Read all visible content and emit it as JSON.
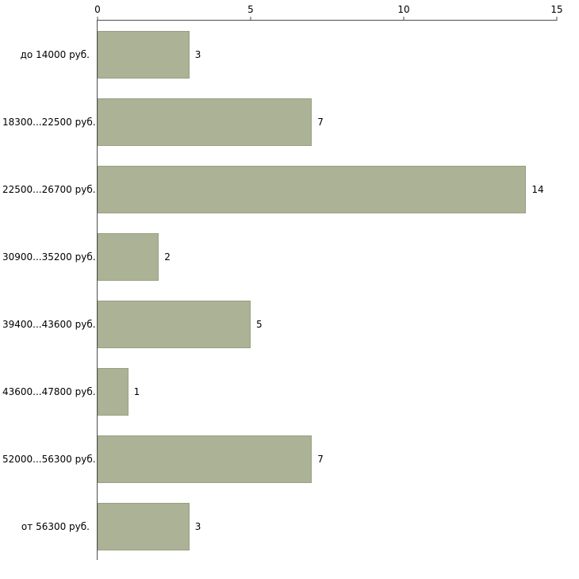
{
  "chart_data": {
    "type": "bar",
    "orientation": "horizontal",
    "title": "",
    "xlabel": "",
    "ylabel": "",
    "categories": [
      "до 14000 руб.",
      "18300...22500 руб.",
      "22500...26700 руб.",
      "30900...35200 руб.",
      "39400...43600 руб.",
      "43600...47800 руб.",
      "52000...56300 руб.",
      "от 56300 руб."
    ],
    "values": [
      3,
      7,
      14,
      2,
      5,
      1,
      7,
      3
    ],
    "xlim": [
      0,
      15
    ],
    "x_ticks": [
      0,
      5,
      10,
      15
    ],
    "bar_color": "#acb296",
    "bar_border_color": "#99a083",
    "axis_color": "#4d4d4d",
    "background_color": "#ffffff",
    "grid": false,
    "legend": "none"
  }
}
